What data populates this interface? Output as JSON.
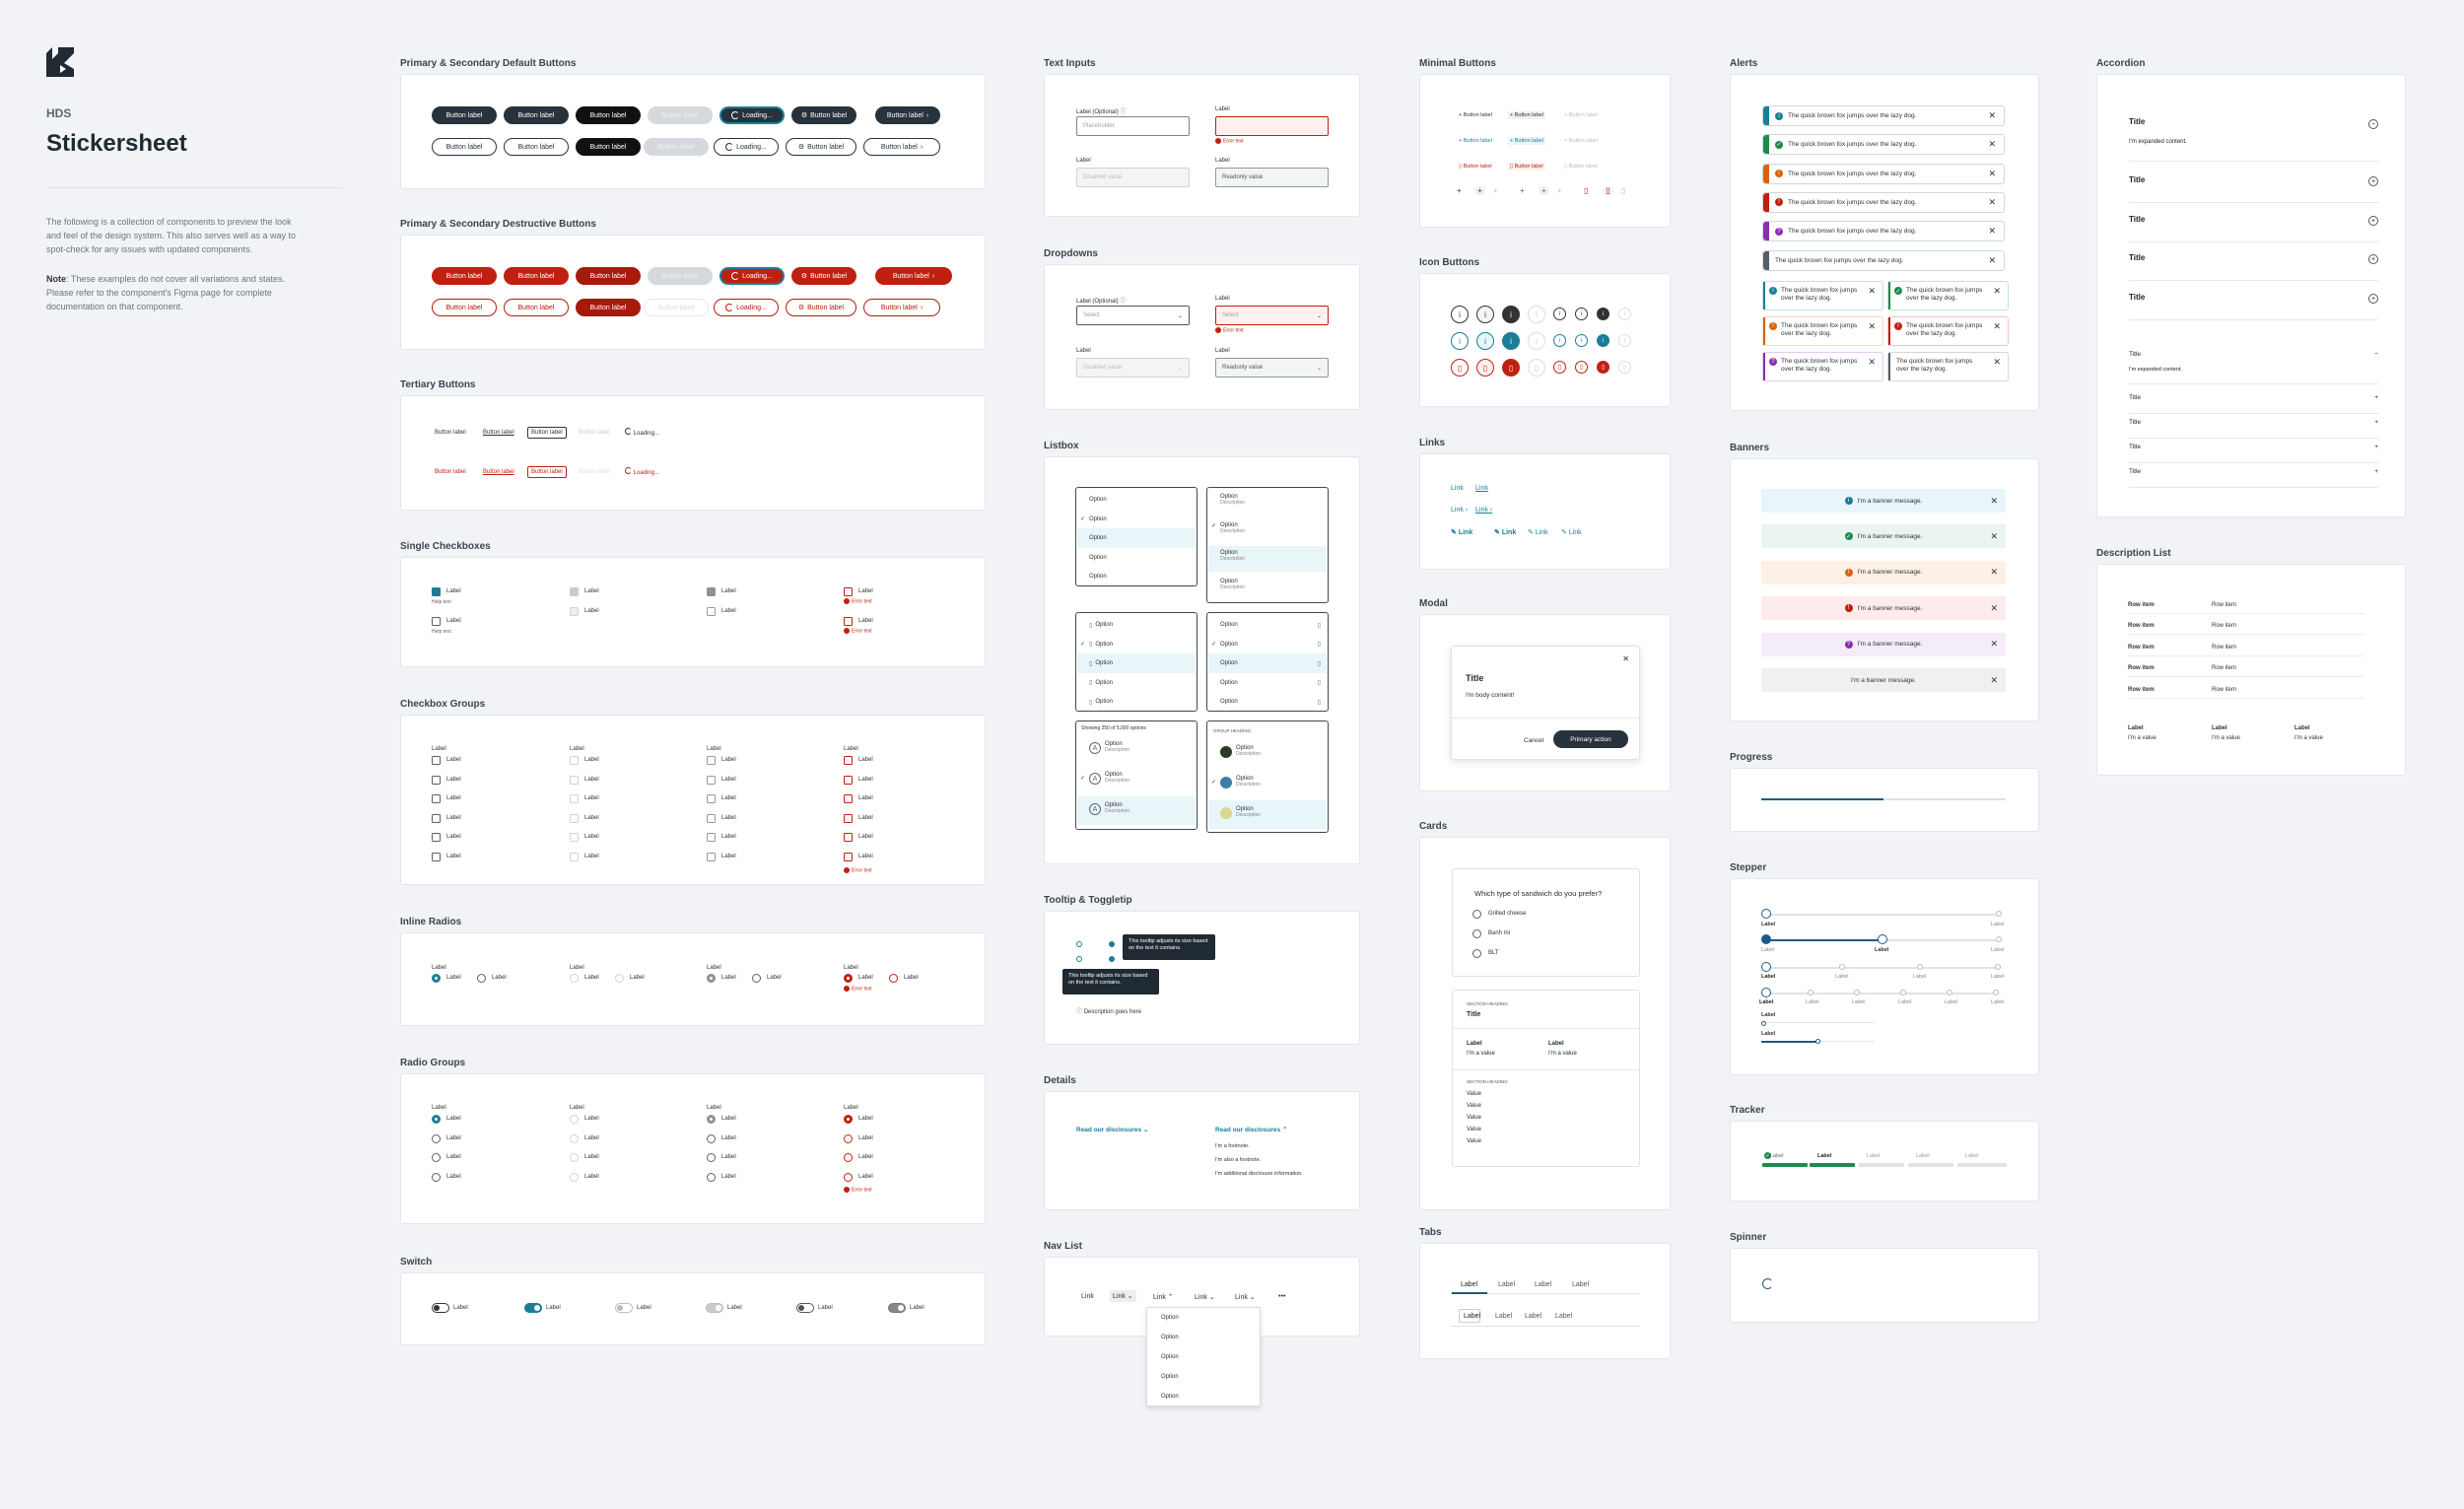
{
  "header": {
    "brand": "HDS",
    "title": "Stickersheet",
    "intro": "The following is a collection of components to preview the look and feel of the design system. This also serves well as a way to spot-check for any issues with updated components.",
    "note_label": "Note",
    "note": ": These examples do not cover all variations and states. Please refer to the component's Figma page for complete documentation on that component."
  },
  "sections": {
    "primary": "Primary & Secondary Default Buttons",
    "destructive": "Primary & Secondary Destructive Buttons",
    "tertiary": "Tertiary Buttons",
    "single_cb": "Single Checkboxes",
    "cb_groups": "Checkbox Groups",
    "inline_radios": "Inline Radios",
    "radio_groups": "Radio Groups",
    "switch": "Switch",
    "text_inputs": "Text Inputs",
    "dropdowns": "Dropdowns",
    "listbox": "Listbox",
    "tooltip": "Tooltip & Toggletip",
    "details": "Details",
    "nav_list": "Nav List",
    "minimal": "Minimal Buttons",
    "icon_buttons": "Icon Buttons",
    "links": "Links",
    "modal": "Modal",
    "cards": "Cards",
    "tabs": "Tabs",
    "alerts": "Alerts",
    "banners": "Banners",
    "progress": "Progress",
    "stepper": "Stepper",
    "tracker": "Tracker",
    "spinner": "Spinner",
    "accordion": "Accordion",
    "description_list": "Description List"
  },
  "buttons": {
    "label": "Button label",
    "loading": "Loading..."
  },
  "form": {
    "label": "Label",
    "label_optional": "Label (Optional)",
    "help": "Help text",
    "error": "Error text",
    "placeholder": "Placeholder",
    "disabled_value": "Disabled value",
    "readonly_value": "Readonly value",
    "select": "Select",
    "option": "Option",
    "description": "Description",
    "showing": "Showing 250 of 5,000 options",
    "group_heading": "GROUP HEADING"
  },
  "tooltip": {
    "text": "This tooltip adjusts its size based on the text it contains.",
    "description": "Description goes here"
  },
  "details": {
    "summary": "Read our disclosures",
    "footnotes": [
      "I'm a footnote.",
      "I'm also a footnote.",
      "I'm additional disclosure information."
    ]
  },
  "nav": {
    "link": "Link",
    "more": "•••",
    "options": [
      "Option",
      "Option",
      "Option",
      "Option",
      "Option"
    ]
  },
  "modal": {
    "title": "Title",
    "body": "I'm body content!",
    "cancel": "Cancel",
    "primary": "Primary action",
    "close": "✕"
  },
  "cards": {
    "question": "Which type of sandwich do you prefer?",
    "choices": [
      "Grilled cheese",
      "Banh mi",
      "BLT"
    ],
    "section_heading": "SECTION HEADING",
    "title": "Title",
    "label": "Label",
    "value_i": "I'm a value",
    "value": "Value"
  },
  "tabs": {
    "items": [
      "Label",
      "Label",
      "Label",
      "Label"
    ]
  },
  "alerts": {
    "text": "The quick brown fox jumps over the lazy dog.",
    "short": "The quick brown fox jumps over the lazy dog.",
    "colors": [
      "#1b7e96",
      "#1f8a4c",
      "#d9620e",
      "#c0200f",
      "#8a2fb0",
      "#555f69"
    ]
  },
  "banners": {
    "text": "I'm a banner message."
  },
  "progress": {
    "value": 0.5
  },
  "accordion": {
    "title": "Title",
    "expanded": "I'm expanded content."
  },
  "description_list": {
    "row_item": "Row item",
    "label": "Label",
    "value": "I'm a value"
  },
  "colors": {
    "teal": "#1b7e96",
    "dark": "#27323c",
    "red": "#c0200f"
  }
}
